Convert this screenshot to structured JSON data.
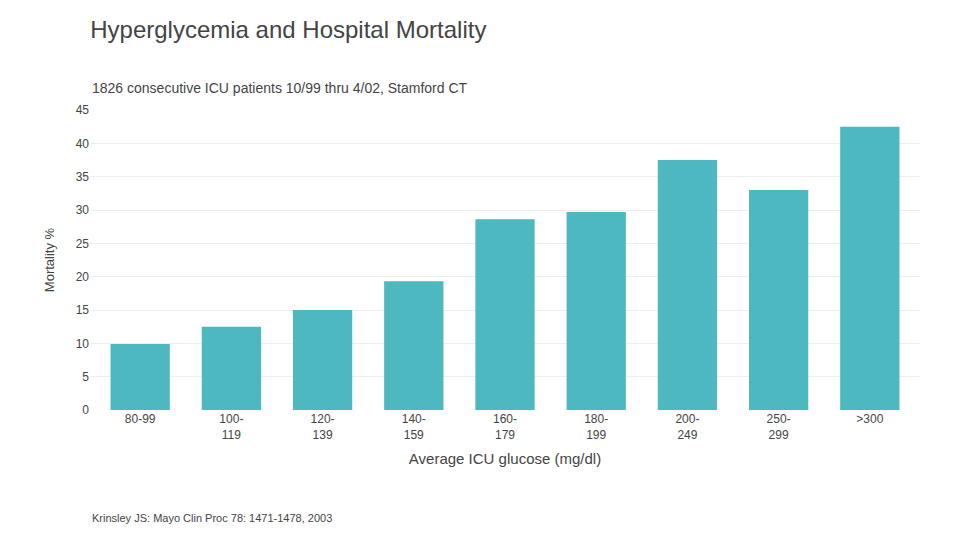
{
  "chart_data": {
    "type": "bar",
    "title": "Hyperglycemia and Hospital Mortality",
    "subtitle": "1826 consecutive ICU patients 10/99 thru 4/02, Stamford CT",
    "xlabel": "Average ICU glucose (mg/dl)",
    "ylabel": "Mortality %",
    "annotations": [
      "Krinsley JS: Mayo Clin Proc 78: 1471-1478, 2003"
    ],
    "categories": [
      "80-99",
      "100-\n119",
      "120-\n139",
      "140-\n159",
      "160-\n179",
      "180-\n199",
      "200-\n249",
      "250-\n299",
      ">300"
    ],
    "values": [
      9.9,
      12.5,
      15.0,
      19.3,
      28.6,
      29.7,
      37.5,
      33.0,
      42.5
    ],
    "color": "#4db8c0",
    "ylim": [
      0,
      45
    ],
    "yticks": [
      0,
      5,
      10,
      15,
      20,
      25,
      30,
      35,
      40,
      45
    ],
    "grid": true
  }
}
